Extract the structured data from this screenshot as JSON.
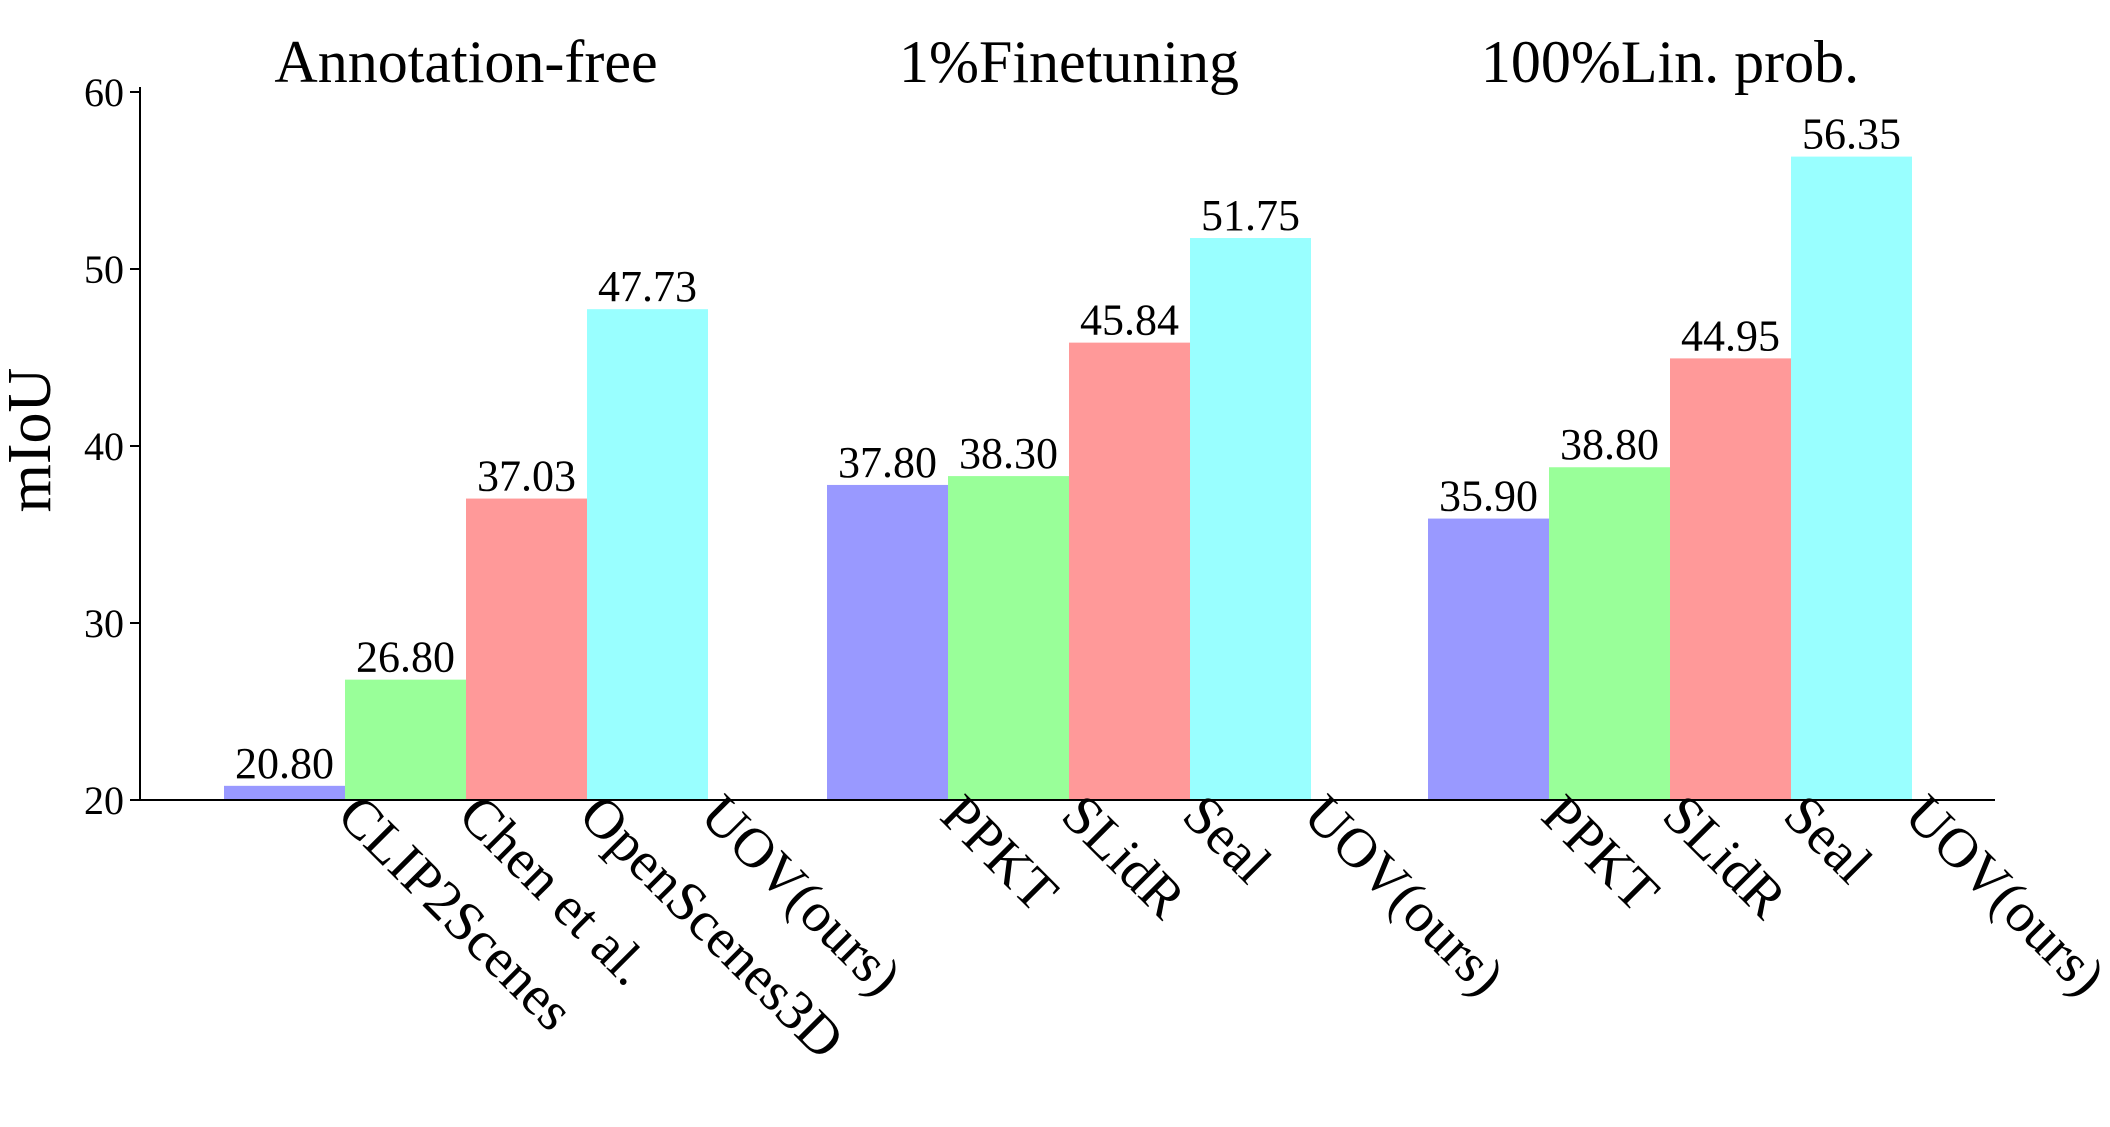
{
  "chart_data": {
    "type": "bar",
    "ylabel": "mIoU",
    "xlabel": "",
    "ylim": [
      20,
      60
    ],
    "yticks": [
      "20",
      "30",
      "40",
      "50",
      "60"
    ],
    "grid": false,
    "colors": [
      "#9999ff",
      "#99ff99",
      "#ff9999",
      "#99ffff"
    ],
    "groups": [
      {
        "title": "Annotation-free",
        "bars": [
          {
            "label": "CLIP2Scenes",
            "value": 20.8,
            "value_label": "20.80"
          },
          {
            "label": "Chen et al.",
            "value": 26.8,
            "value_label": "26.80"
          },
          {
            "label": "OpenScenes3D",
            "value": 37.03,
            "value_label": "37.03"
          },
          {
            "label": "UOV(ours)",
            "value": 47.73,
            "value_label": "47.73"
          }
        ]
      },
      {
        "title": "1%Finetuning",
        "bars": [
          {
            "label": "PPKT",
            "value": 37.8,
            "value_label": "37.80"
          },
          {
            "label": "SLidR",
            "value": 38.3,
            "value_label": "38.30"
          },
          {
            "label": "Seal",
            "value": 45.84,
            "value_label": "45.84"
          },
          {
            "label": "UOV(ours)",
            "value": 51.75,
            "value_label": "51.75"
          }
        ]
      },
      {
        "title": "100%Lin. prob.",
        "bars": [
          {
            "label": "PPKT",
            "value": 35.9,
            "value_label": "35.90"
          },
          {
            "label": "SLidR",
            "value": 38.8,
            "value_label": "38.80"
          },
          {
            "label": "Seal",
            "value": 44.95,
            "value_label": "44.95"
          },
          {
            "label": "UOV(ours)",
            "value": 56.35,
            "value_label": "56.35"
          }
        ]
      }
    ]
  }
}
